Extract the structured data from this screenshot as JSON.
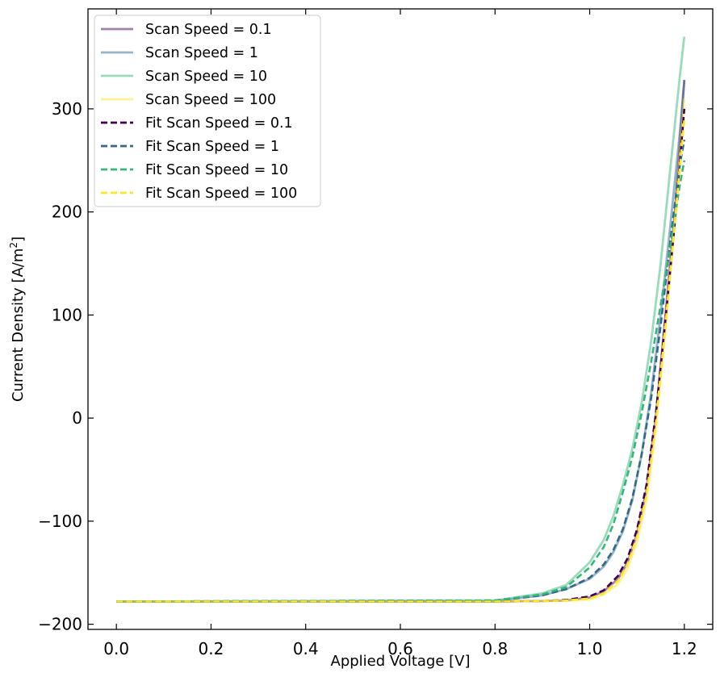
{
  "chart_data": {
    "type": "line",
    "title": "",
    "xlabel": "Applied Voltage [V]",
    "ylabel": "Current Density [A/m",
    "ylabel_sup": "2",
    "ylabel_end": "]",
    "xlim": [
      -0.06,
      1.26
    ],
    "ylim": [
      -205,
      397
    ],
    "xticks": [
      0.0,
      0.2,
      0.4,
      0.6,
      0.8,
      1.0,
      1.2
    ],
    "xtick_labels": [
      "0.0",
      "0.2",
      "0.4",
      "0.6",
      "0.8",
      "1.0",
      "1.2"
    ],
    "yticks": [
      -200,
      -100,
      0,
      100,
      200,
      300
    ],
    "ytick_labels": [
      "−200",
      "−100",
      "0",
      "100",
      "200",
      "300"
    ],
    "grid": false,
    "legend_position": "top-left",
    "series": [
      {
        "name": "Scan Speed = 0.1",
        "style": "solid",
        "color": "#440154",
        "opacity": 0.5,
        "x": [
          0,
          0.8,
          0.9,
          0.95,
          1.0,
          1.03,
          1.06,
          1.08,
          1.1,
          1.12,
          1.14,
          1.16,
          1.18,
          1.2
        ],
        "y": [
          -178,
          -178,
          -177.5,
          -177,
          -174,
          -168,
          -156,
          -140,
          -112,
          -70,
          2,
          100,
          200,
          328
        ]
      },
      {
        "name": "Scan Speed = 1",
        "style": "solid",
        "color": "#31688e",
        "opacity": 0.5,
        "x": [
          0,
          0.8,
          0.9,
          0.95,
          1.0,
          1.03,
          1.05,
          1.07,
          1.09,
          1.11,
          1.13,
          1.15,
          1.17,
          1.19,
          1.2
        ],
        "y": [
          -178,
          -177.5,
          -172,
          -166,
          -156,
          -144,
          -130,
          -110,
          -80,
          -35,
          25,
          100,
          185,
          275,
          328
        ]
      },
      {
        "name": "Scan Speed = 10",
        "style": "solid",
        "color": "#35b779",
        "opacity": 0.5,
        "x": [
          0,
          0.8,
          0.9,
          0.95,
          1.0,
          1.03,
          1.05,
          1.07,
          1.09,
          1.11,
          1.13,
          1.15,
          1.17,
          1.19,
          1.2
        ],
        "y": [
          -178,
          -177,
          -170,
          -162,
          -140,
          -118,
          -95,
          -65,
          -30,
          15,
          75,
          150,
          240,
          330,
          370
        ]
      },
      {
        "name": "Scan Speed = 100",
        "style": "solid",
        "color": "#fde725",
        "opacity": 0.5,
        "x": [
          0,
          0.8,
          0.9,
          0.95,
          1.0,
          1.03,
          1.06,
          1.08,
          1.1,
          1.12,
          1.14,
          1.16,
          1.18,
          1.2
        ],
        "y": [
          -178,
          -178,
          -177.5,
          -177,
          -176,
          -171,
          -161,
          -146,
          -120,
          -80,
          -10,
          85,
          190,
          310
        ]
      },
      {
        "name": "Fit Scan Speed = 0.1",
        "style": "dashed",
        "color": "#440154",
        "opacity": 1,
        "x": [
          0,
          0.8,
          0.9,
          0.95,
          1.0,
          1.03,
          1.06,
          1.08,
          1.1,
          1.12,
          1.14,
          1.16,
          1.18,
          1.2
        ],
        "y": [
          -178,
          -178,
          -177.5,
          -176.5,
          -173,
          -167,
          -153,
          -136,
          -108,
          -65,
          5,
          95,
          190,
          300
        ]
      },
      {
        "name": "Fit Scan Speed = 1",
        "style": "dashed",
        "color": "#31688e",
        "opacity": 1,
        "x": [
          0,
          0.8,
          0.9,
          0.95,
          1.0,
          1.03,
          1.05,
          1.07,
          1.09,
          1.11,
          1.13,
          1.15,
          1.17,
          1.19,
          1.2
        ],
        "y": [
          -178,
          -177,
          -172,
          -166,
          -155,
          -142,
          -128,
          -108,
          -78,
          -35,
          20,
          90,
          170,
          245,
          270
        ]
      },
      {
        "name": "Fit Scan Speed = 10",
        "style": "dashed",
        "color": "#35b779",
        "opacity": 1,
        "x": [
          0,
          0.8,
          0.9,
          0.95,
          1.0,
          1.03,
          1.05,
          1.07,
          1.09,
          1.11,
          1.13,
          1.15,
          1.17,
          1.19,
          1.2
        ],
        "y": [
          -178,
          -177,
          -171,
          -164,
          -145,
          -125,
          -103,
          -72,
          -38,
          5,
          55,
          110,
          165,
          225,
          250
        ]
      },
      {
        "name": "Fit Scan Speed = 100",
        "style": "dashed",
        "color": "#fde725",
        "opacity": 1,
        "x": [
          0,
          0.8,
          0.9,
          0.95,
          1.0,
          1.03,
          1.06,
          1.08,
          1.1,
          1.12,
          1.14,
          1.16,
          1.18,
          1.2
        ],
        "y": [
          -178,
          -178,
          -177.5,
          -177,
          -175,
          -170,
          -158,
          -142,
          -115,
          -75,
          -5,
          90,
          190,
          290
        ]
      }
    ]
  }
}
